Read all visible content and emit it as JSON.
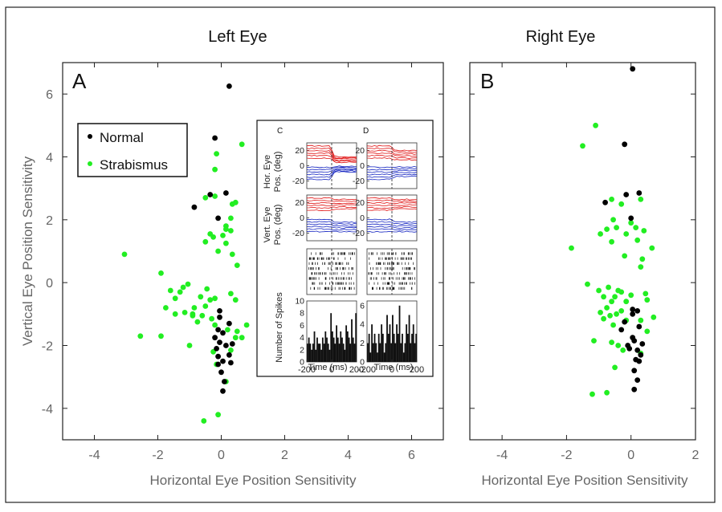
{
  "colors": {
    "normal": "#000000",
    "strabismus": "#22ee22",
    "axis_text": "#666666",
    "inset_red": "#e01010",
    "inset_blue": "#1020c0"
  },
  "chart_data": [
    {
      "type": "scatter",
      "title": "Left Eye",
      "panel_label": "A",
      "xlabel": "Horizontal Eye Position Sensitivity",
      "ylabel": "Vertical Eye Position Sensitivity",
      "xlim": [
        -5,
        7
      ],
      "ylim": [
        -5,
        7
      ],
      "xticks": [
        "-4",
        "-2",
        "0",
        "2",
        "4",
        "6"
      ],
      "yticks": [
        "-4",
        "-2",
        "0",
        "2",
        "4",
        "6"
      ],
      "xtick_values": [
        -4,
        -2,
        0,
        2,
        4,
        6
      ],
      "ytick_values": [
        -4,
        -2,
        0,
        2,
        4,
        6
      ],
      "legend": {
        "placement": "top-left",
        "entries": [
          "Normal",
          "Strabismus"
        ]
      },
      "series": [
        {
          "name": "Normal",
          "color": "#000000",
          "points": [
            [
              0.25,
              6.25
            ],
            [
              -0.2,
              4.6
            ],
            [
              -0.85,
              2.4
            ],
            [
              -0.35,
              2.8
            ],
            [
              0.15,
              2.85
            ],
            [
              -0.1,
              2.05
            ],
            [
              -0.05,
              -0.9
            ],
            [
              -0.05,
              -1.1
            ],
            [
              0.25,
              -1.3
            ],
            [
              -0.1,
              -1.5
            ],
            [
              -0.2,
              -1.75
            ],
            [
              0.05,
              -1.6
            ],
            [
              -0.05,
              -1.9
            ],
            [
              0.15,
              -2.0
            ],
            [
              -0.15,
              -2.1
            ],
            [
              0.25,
              -2.3
            ],
            [
              0.05,
              -2.5
            ],
            [
              0.3,
              -2.55
            ],
            [
              -0.1,
              -2.6
            ],
            [
              0.0,
              -2.85
            ],
            [
              0.1,
              -3.15
            ],
            [
              0.05,
              -3.45
            ],
            [
              -0.1,
              -2.35
            ],
            [
              0.35,
              -1.95
            ]
          ]
        },
        {
          "name": "Strabismus",
          "color": "#22ee22",
          "points": [
            [
              -0.15,
              4.1
            ],
            [
              0.65,
              4.4
            ],
            [
              -0.2,
              3.6
            ],
            [
              -0.5,
              2.7
            ],
            [
              -0.2,
              2.75
            ],
            [
              0.35,
              2.5
            ],
            [
              0.45,
              2.55
            ],
            [
              0.3,
              2.05
            ],
            [
              0.15,
              1.8
            ],
            [
              0.3,
              1.65
            ],
            [
              -0.35,
              1.55
            ],
            [
              -0.25,
              1.45
            ],
            [
              0.05,
              1.5
            ],
            [
              0.15,
              1.7
            ],
            [
              -0.5,
              1.3
            ],
            [
              0.15,
              1.25
            ],
            [
              -0.1,
              1.0
            ],
            [
              0.35,
              0.9
            ],
            [
              0.5,
              0.55
            ],
            [
              -3.05,
              0.9
            ],
            [
              -1.9,
              0.3
            ],
            [
              -1.05,
              -0.05
            ],
            [
              -1.2,
              -0.15
            ],
            [
              -1.6,
              -0.25
            ],
            [
              -1.3,
              -0.3
            ],
            [
              -1.45,
              -0.5
            ],
            [
              -0.45,
              -0.2
            ],
            [
              -0.65,
              -0.45
            ],
            [
              -0.35,
              -0.55
            ],
            [
              0.3,
              -0.35
            ],
            [
              0.45,
              -0.55
            ],
            [
              -0.2,
              -0.5
            ],
            [
              -0.5,
              -0.75
            ],
            [
              -0.85,
              -0.8
            ],
            [
              -0.9,
              -1.0
            ],
            [
              -0.9,
              -1.05
            ],
            [
              -1.15,
              -0.95
            ],
            [
              -0.6,
              -1.05
            ],
            [
              -0.75,
              -1.25
            ],
            [
              -1.45,
              -1.0
            ],
            [
              -1.75,
              -0.8
            ],
            [
              -0.3,
              -1.15
            ],
            [
              -0.2,
              -1.35
            ],
            [
              0.2,
              -1.5
            ],
            [
              0.5,
              -1.55
            ],
            [
              0.8,
              -1.35
            ],
            [
              0.45,
              -1.75
            ],
            [
              0.65,
              -1.75
            ],
            [
              -2.55,
              -1.7
            ],
            [
              -1.9,
              -1.7
            ],
            [
              -1.0,
              -2.0
            ],
            [
              -0.25,
              -2.2
            ],
            [
              0.3,
              -2.15
            ],
            [
              -0.15,
              -2.6
            ],
            [
              0.15,
              -3.15
            ],
            [
              -0.55,
              -4.4
            ],
            [
              -0.1,
              -4.2
            ]
          ]
        }
      ]
    },
    {
      "type": "scatter",
      "title": "Right Eye",
      "panel_label": "B",
      "xlabel": "Horizontal Eye Position Sensitivity",
      "xlim": [
        -5,
        2
      ],
      "ylim": [
        -5,
        7
      ],
      "xticks": [
        "-4",
        "-2",
        "0",
        "2"
      ],
      "xtick_values": [
        -4,
        -2,
        0,
        2
      ],
      "series": [
        {
          "name": "Normal",
          "color": "#000000",
          "points": [
            [
              0.05,
              6.8
            ],
            [
              -0.2,
              4.4
            ],
            [
              -0.15,
              2.8
            ],
            [
              0.25,
              2.85
            ],
            [
              -0.8,
              2.55
            ],
            [
              0.0,
              2.05
            ],
            [
              0.05,
              -0.85
            ],
            [
              0.2,
              -0.9
            ],
            [
              0.05,
              -1.0
            ],
            [
              -0.2,
              -1.25
            ],
            [
              0.25,
              -1.4
            ],
            [
              -0.3,
              -1.5
            ],
            [
              0.05,
              -1.75
            ],
            [
              0.1,
              -1.85
            ],
            [
              -0.1,
              -2.0
            ],
            [
              0.2,
              -2.15
            ],
            [
              0.3,
              -2.3
            ],
            [
              0.15,
              -2.45
            ],
            [
              0.25,
              -2.5
            ],
            [
              0.1,
              -2.8
            ],
            [
              0.2,
              -3.1
            ],
            [
              0.1,
              -3.4
            ],
            [
              -0.05,
              -2.1
            ],
            [
              0.35,
              -1.95
            ]
          ]
        },
        {
          "name": "Strabismus",
          "color": "#22ee22",
          "points": [
            [
              -1.1,
              5.0
            ],
            [
              -1.5,
              4.35
            ],
            [
              -0.6,
              2.65
            ],
            [
              0.3,
              2.65
            ],
            [
              -0.3,
              2.5
            ],
            [
              -0.55,
              2.0
            ],
            [
              0.0,
              1.9
            ],
            [
              -0.75,
              1.7
            ],
            [
              -0.45,
              1.75
            ],
            [
              0.15,
              1.75
            ],
            [
              0.4,
              1.65
            ],
            [
              -0.15,
              1.55
            ],
            [
              -0.95,
              1.55
            ],
            [
              -0.6,
              1.3
            ],
            [
              0.2,
              1.35
            ],
            [
              0.65,
              1.1
            ],
            [
              -1.85,
              1.1
            ],
            [
              0.35,
              0.75
            ],
            [
              -0.2,
              0.85
            ],
            [
              0.3,
              0.5
            ],
            [
              -1.35,
              -0.05
            ],
            [
              -1.0,
              -0.25
            ],
            [
              -0.7,
              -0.15
            ],
            [
              -0.4,
              -0.25
            ],
            [
              -0.5,
              -0.45
            ],
            [
              -0.85,
              -0.45
            ],
            [
              -0.6,
              -0.6
            ],
            [
              -0.3,
              -0.3
            ],
            [
              0.0,
              -0.4
            ],
            [
              0.45,
              -0.35
            ],
            [
              0.5,
              -0.55
            ],
            [
              -0.15,
              -0.6
            ],
            [
              -0.75,
              -0.8
            ],
            [
              -0.95,
              -0.95
            ],
            [
              -0.65,
              -1.05
            ],
            [
              -0.45,
              -1.0
            ],
            [
              -0.3,
              -0.9
            ],
            [
              -0.85,
              -1.15
            ],
            [
              -0.15,
              -1.2
            ],
            [
              0.3,
              -1.2
            ],
            [
              0.7,
              -1.1
            ],
            [
              -0.55,
              -1.35
            ],
            [
              0.5,
              -1.55
            ],
            [
              -1.15,
              -1.85
            ],
            [
              -0.6,
              -1.9
            ],
            [
              -0.4,
              -2.0
            ],
            [
              -0.25,
              -2.15
            ],
            [
              0.3,
              -2.25
            ],
            [
              -0.5,
              -2.7
            ],
            [
              -1.2,
              -3.55
            ],
            [
              -0.75,
              -3.5
            ]
          ]
        }
      ]
    },
    {
      "type": "line",
      "panel_label": "C",
      "inset": true,
      "rows": [
        {
          "ylabel": [
            "Hor. Eye",
            "Pos. (deg)"
          ],
          "yticks": [
            "20",
            "0",
            "-20"
          ]
        },
        {
          "ylabel": [
            "Vert. Eye",
            "Pos. (deg)"
          ],
          "yticks": [
            "20",
            "0",
            "-20"
          ]
        },
        {
          "kind": "raster"
        },
        {
          "kind": "bar",
          "ylabel": "Number of Spikes",
          "yticks": [
            "10",
            "8",
            "6",
            "4",
            "2",
            "0"
          ],
          "ylim": [
            0,
            10
          ],
          "values": [
            3,
            4,
            3,
            2,
            3,
            5,
            2,
            4,
            3,
            3,
            2,
            4,
            3,
            5,
            4,
            3,
            2,
            8,
            5,
            4,
            3,
            6,
            4,
            3,
            5,
            4,
            3,
            2,
            6,
            5,
            4,
            3,
            7,
            4,
            3,
            8
          ]
        }
      ],
      "xticks": [
        "-200",
        "0",
        "200"
      ],
      "xlabel": "Time (ms)"
    },
    {
      "type": "line",
      "panel_label": "D",
      "inset": true,
      "rows": [
        {
          "yticks": [
            "20",
            "0",
            "-20"
          ]
        },
        {
          "yticks": [
            "20",
            "0",
            "-20"
          ]
        },
        {
          "kind": "raster"
        },
        {
          "kind": "bar",
          "yticks": [
            "6",
            "4",
            "2",
            "0"
          ],
          "ylim": [
            0,
            6.5
          ],
          "values": [
            2,
            3,
            1,
            4,
            2,
            3,
            2,
            1,
            3,
            2,
            4,
            3,
            1,
            2,
            5,
            3,
            4,
            2,
            5,
            3,
            2,
            4,
            3,
            6,
            2,
            3,
            1,
            2,
            4,
            3,
            5,
            2,
            3,
            4,
            2,
            3
          ]
        }
      ],
      "xticks": [
        "-200",
        "0",
        "200"
      ],
      "xlabel": "Time (ms)"
    }
  ]
}
